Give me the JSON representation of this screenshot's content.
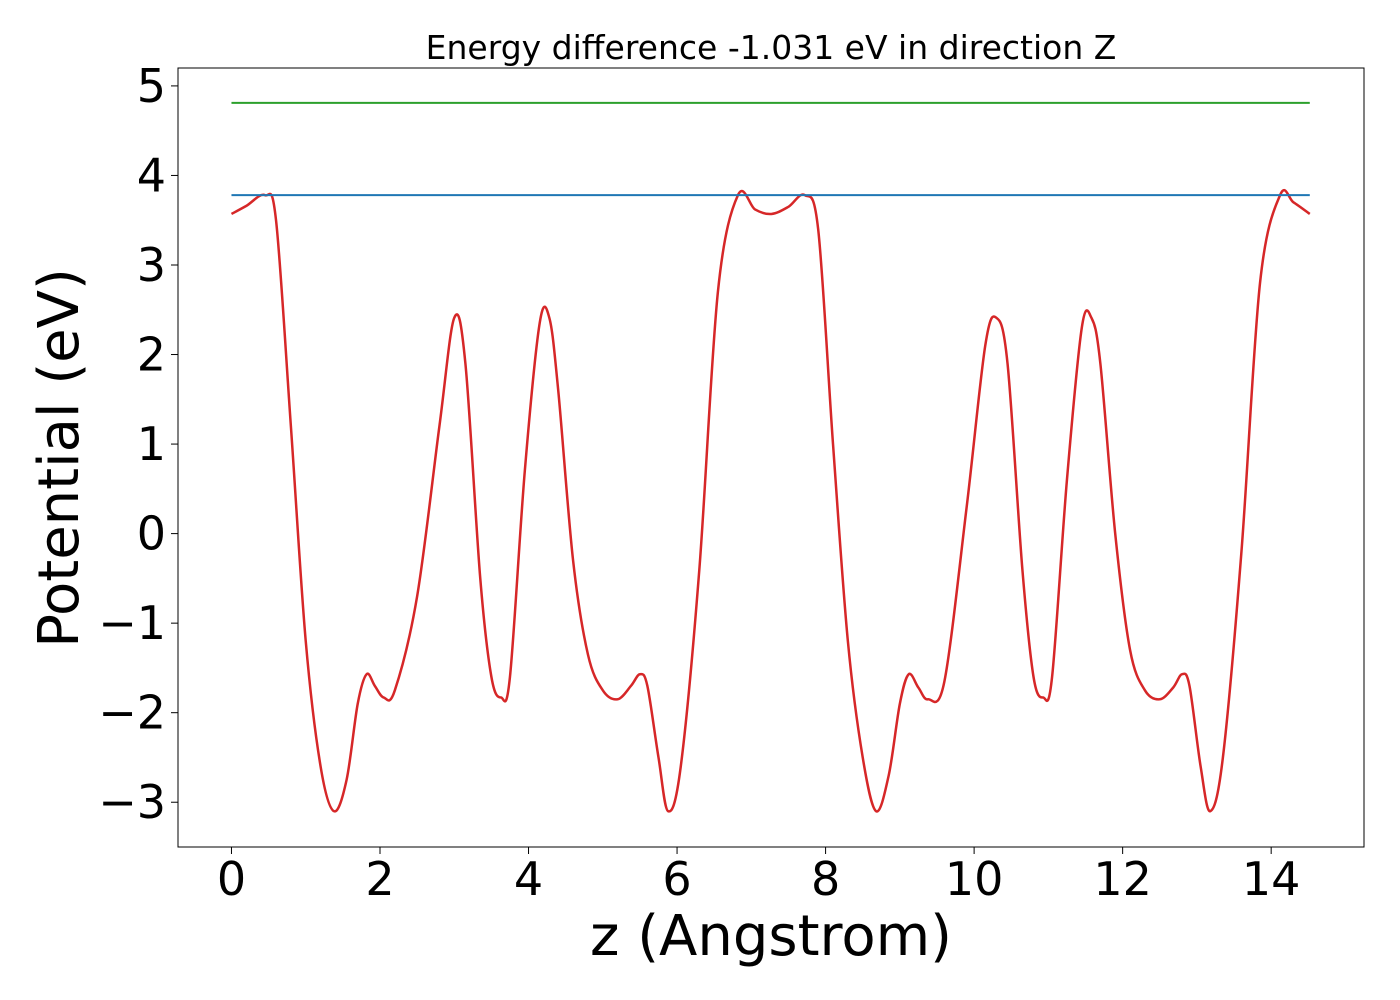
{
  "chart_data": {
    "type": "line",
    "title": "Energy difference -1.031 eV in direction Z",
    "xlabel": "z (Angstrom)",
    "ylabel": "Potential (eV)",
    "xlim": [
      -0.72,
      15.25
    ],
    "ylim": [
      -3.5,
      5.2
    ],
    "xticks": [
      0,
      2,
      4,
      6,
      8,
      10,
      12,
      14
    ],
    "yticks": [
      -3,
      -2,
      -1,
      0,
      1,
      2,
      3,
      4,
      5
    ],
    "xtick_labels": [
      "0",
      "2",
      "4",
      "6",
      "8",
      "10",
      "12",
      "14"
    ],
    "ytick_labels": [
      "−3",
      "−2",
      "−1",
      "0",
      "1",
      "2",
      "3",
      "4",
      "5"
    ],
    "grid": false,
    "legend": "none",
    "series": [
      {
        "color": "#d62728",
        "x": [
          0,
          0.2,
          0.45,
          0.6,
          0.8,
          1.0,
          1.2,
          1.38,
          1.55,
          1.7,
          1.82,
          1.93,
          2.05,
          2.2,
          2.5,
          2.8,
          3.0,
          3.15,
          3.35,
          3.5,
          3.63,
          3.75,
          3.95,
          4.15,
          4.28,
          4.4,
          4.6,
          4.8,
          5.0,
          5.2,
          5.38,
          5.5,
          5.6,
          5.75,
          5.88,
          6.05,
          6.3,
          6.55,
          6.82,
          7.05,
          7.27,
          7.5,
          7.72,
          7.9,
          8.1,
          8.3,
          8.5,
          8.68,
          8.85,
          9.0,
          9.12,
          9.25,
          9.38,
          9.6,
          9.9,
          10.15,
          10.3,
          10.45,
          10.65,
          10.8,
          10.93,
          11.05,
          11.25,
          11.45,
          11.58,
          11.7,
          11.9,
          12.1,
          12.3,
          12.5,
          12.68,
          12.8,
          12.9,
          13.05,
          13.18,
          13.35,
          13.6,
          13.85,
          14.12,
          14.3,
          14.52
        ],
        "y": [
          3.57,
          3.66,
          3.78,
          3.5,
          1.2,
          -1.2,
          -2.6,
          -3.1,
          -2.75,
          -1.9,
          -1.57,
          -1.7,
          -1.83,
          -1.75,
          -0.7,
          1.2,
          2.41,
          1.9,
          -0.5,
          -1.6,
          -1.83,
          -1.6,
          0.7,
          2.35,
          2.41,
          1.6,
          -0.3,
          -1.35,
          -1.75,
          -1.85,
          -1.7,
          -1.57,
          -1.7,
          -2.5,
          -3.1,
          -2.6,
          -0.4,
          2.7,
          3.78,
          3.62,
          3.57,
          3.65,
          3.78,
          3.4,
          1.0,
          -1.2,
          -2.5,
          -3.1,
          -2.7,
          -1.9,
          -1.57,
          -1.72,
          -1.85,
          -1.65,
          0.3,
          2.1,
          2.41,
          1.9,
          -0.4,
          -1.6,
          -1.83,
          -1.6,
          0.6,
          2.3,
          2.41,
          1.9,
          0.0,
          -1.3,
          -1.75,
          -1.85,
          -1.72,
          -1.57,
          -1.7,
          -2.6,
          -3.1,
          -2.5,
          -0.2,
          2.8,
          3.78,
          3.7,
          3.57
        ]
      },
      {
        "color": "#1f77b4",
        "x": [
          0,
          14.52
        ],
        "y": [
          3.78,
          3.78
        ]
      },
      {
        "color": "#2ca02c",
        "x": [
          0,
          14.52
        ],
        "y": [
          4.81,
          4.81
        ]
      }
    ]
  }
}
